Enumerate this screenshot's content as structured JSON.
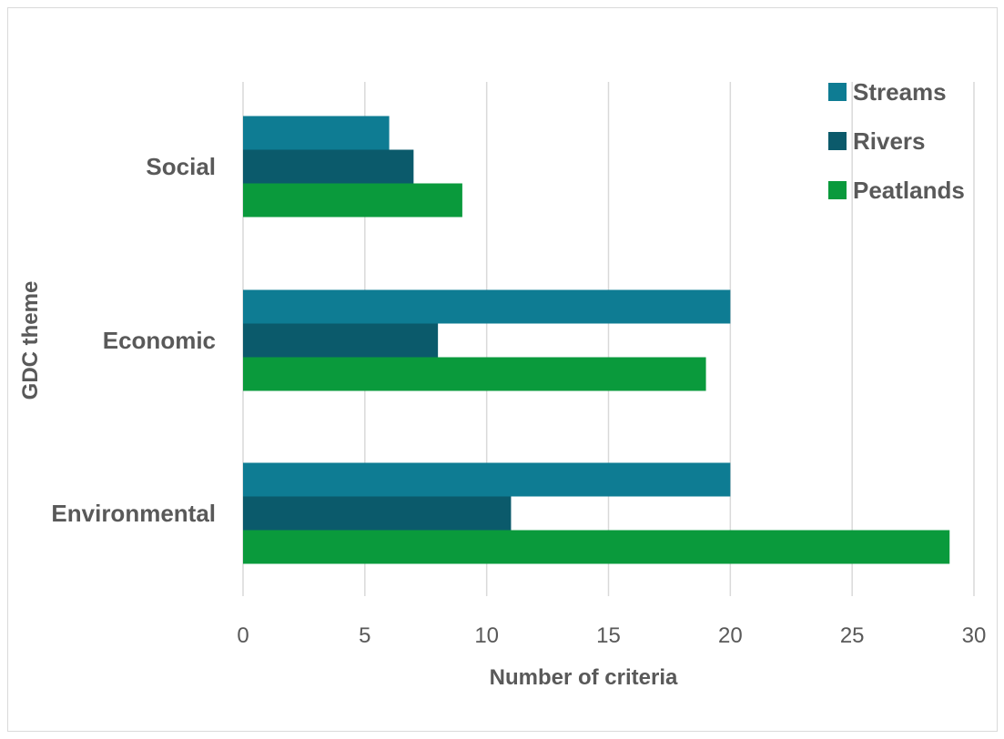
{
  "chart_data": {
    "type": "bar",
    "orientation": "horizontal",
    "categories": [
      "Social",
      "Economic",
      "Environmental"
    ],
    "series": [
      {
        "name": "Streams",
        "values": [
          6,
          20,
          20
        ],
        "color": "#0e7c93"
      },
      {
        "name": "Rivers",
        "values": [
          7,
          8,
          11
        ],
        "color": "#0b5a6b"
      },
      {
        "name": "Peatlands",
        "values": [
          9,
          19,
          29
        ],
        "color": "#0a9a3c"
      }
    ],
    "xlabel": "Number of criteria",
    "ylabel": "GDC theme",
    "xlim": [
      0,
      30
    ],
    "xticks": [
      "0",
      "5",
      "10",
      "15",
      "20",
      "25",
      "30"
    ],
    "grid": "vertical",
    "legend_position": "top-right"
  }
}
